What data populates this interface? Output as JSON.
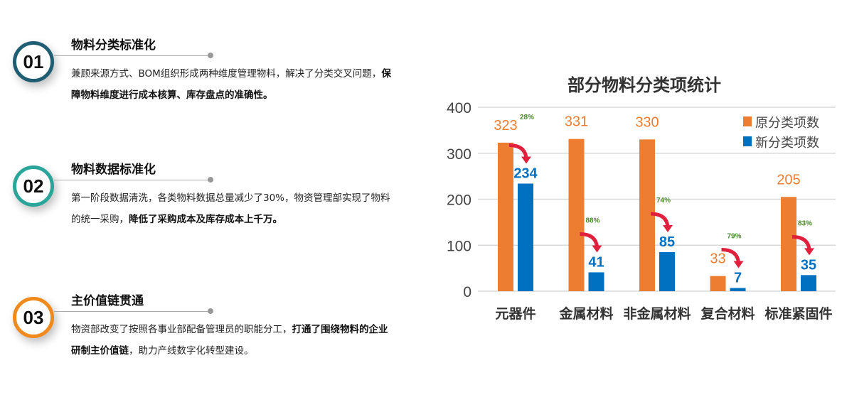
{
  "items": [
    {
      "num": "01",
      "title": "物料分类标准化",
      "text": "兼顾来源方式、BOM组织形成两种维度管理物料，解决了分类交叉问题，",
      "bold": "保障物料维度进行成本核算、库存盘点的准确性。",
      "after": "",
      "color": "#1f5d73"
    },
    {
      "num": "02",
      "title": "物料数据标准化",
      "text": "第一阶段数据清洗，各类物料数据总量减少了30%，物资管理部实现了物料的统一采购，",
      "bold": "降低了采购成本及库存成本上千万。",
      "after": "",
      "color": "#2aa59a"
    },
    {
      "num": "03",
      "title": "主价值链贯通",
      "text": "物资部改变了按照各事业部配备管理员的职能分工，",
      "bold": "打通了围绕物料的企业研制主价值链",
      "after": "，助力产线数字化转型建设。",
      "color": "#f08a1c"
    }
  ],
  "chart_data": {
    "type": "bar",
    "title": "部分物料分类项统计",
    "categories": [
      "元器件",
      "金属材料",
      "非金属材料",
      "复合材料",
      "标准紧固件"
    ],
    "series": [
      {
        "name": "原分类项数",
        "values": [
          323,
          331,
          330,
          33,
          205
        ],
        "color": "#ed7d31"
      },
      {
        "name": "新分类项数",
        "values": [
          234,
          41,
          85,
          7,
          35
        ],
        "color": "#0070c0"
      }
    ],
    "reductions": [
      "28%",
      "88%",
      "74%",
      "79%",
      "83%"
    ],
    "yticks": [
      0,
      100,
      200,
      300,
      400
    ],
    "ylim": [
      0,
      400
    ],
    "grid": true,
    "legend": "top-right",
    "arrow_color": "#e0203c",
    "reduction_color": "#4a8a2a"
  }
}
